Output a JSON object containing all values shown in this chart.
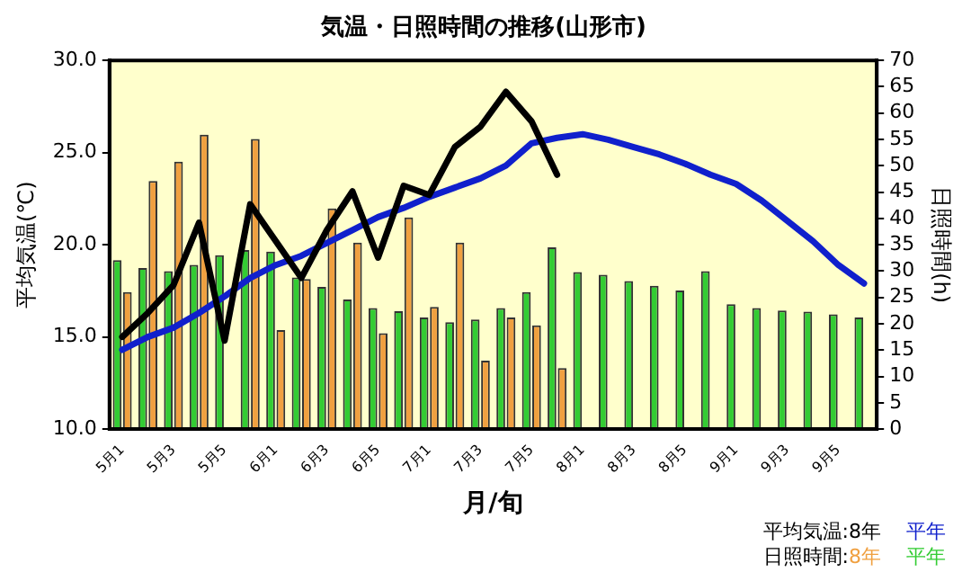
{
  "chart_data": {
    "type": "bar",
    "title": "気温・日照時間の推移(山形市)",
    "xlabel": "月/旬",
    "ylabel": "平均気温(℃)",
    "y2label": "日照時間(h)",
    "categories": [
      "5月1",
      null,
      "5月3",
      null,
      "5月5",
      null,
      "6月1",
      null,
      "6月3",
      null,
      "6月5",
      null,
      "7月1",
      null,
      "7月3",
      null,
      "7月5",
      null,
      "8月1",
      null,
      "8月3",
      null,
      "8月5",
      null,
      "9月1",
      null,
      "9月3",
      null,
      "9月5",
      null
    ],
    "series": [
      {
        "name": "平年",
        "type": "bar",
        "axis": "y2",
        "color": "#33cc33",
        "values": [
          32.1,
          30.6,
          30,
          31.2,
          33,
          34,
          33.7,
          28.8,
          27,
          24.6,
          23,
          22.4,
          21.2,
          20.3,
          20.8,
          23,
          26,
          34.5,
          29.8,
          29.3,
          28.1,
          27.2,
          26.3,
          30,
          23.7,
          23,
          22.5,
          22.3,
          21.8,
          21.2
        ]
      },
      {
        "name": "8年",
        "type": "bar",
        "axis": "y2",
        "color": "#f0a040",
        "values": [
          26,
          47.1,
          50.8,
          55.9,
          null,
          55.1,
          18.8,
          28.5,
          41.9,
          35.4,
          18.2,
          40.2,
          23.2,
          35.4,
          13,
          21.2,
          19.7,
          11.6,
          null,
          null,
          null,
          null,
          null,
          null,
          null,
          null,
          null,
          null,
          null,
          null
        ]
      },
      {
        "name": "8年",
        "type": "line",
        "axis": "y",
        "color": "#000000",
        "values": [
          15,
          16.3,
          17.8,
          21.2,
          14.8,
          22.2,
          20.2,
          18.2,
          20.8,
          22.9,
          19.3,
          23.2,
          22.7,
          25.3,
          26.4,
          28.3,
          26.7,
          23.8,
          null,
          null,
          null,
          null,
          null,
          null,
          null,
          null,
          null,
          null,
          null,
          null
        ]
      },
      {
        "name": "平年",
        "type": "line",
        "axis": "y",
        "color": "#1020cc",
        "values": [
          14.3,
          15,
          15.5,
          16.3,
          17.2,
          18.2,
          18.9,
          19.4,
          20.1,
          20.8,
          21.5,
          22,
          22.6,
          23.1,
          23.6,
          24.3,
          25.5,
          25.8,
          26,
          25.7,
          25.3,
          24.9,
          24.4,
          23.8,
          23.3,
          22.4,
          21.3,
          20.2,
          18.9,
          17.9
        ]
      }
    ],
    "ylim": [
      10,
      30
    ],
    "yticks": [
      {
        "value": 10,
        "label": "10.0"
      },
      {
        "value": 15,
        "label": "15.0"
      },
      {
        "value": 20,
        "label": "20.0"
      },
      {
        "value": 25,
        "label": "25.0"
      },
      {
        "value": 30,
        "label": "30.0"
      }
    ],
    "y2lim": [
      0,
      70
    ],
    "y2ticks": [
      0,
      5,
      10,
      15,
      20,
      25,
      30,
      35,
      40,
      45,
      50,
      55,
      60,
      65,
      70
    ],
    "annotations": [
      "平均気温:",
      "日照時間:"
    ],
    "legend": "bottom right",
    "grid": false,
    "marker": "none",
    "line_style": "solid"
  }
}
